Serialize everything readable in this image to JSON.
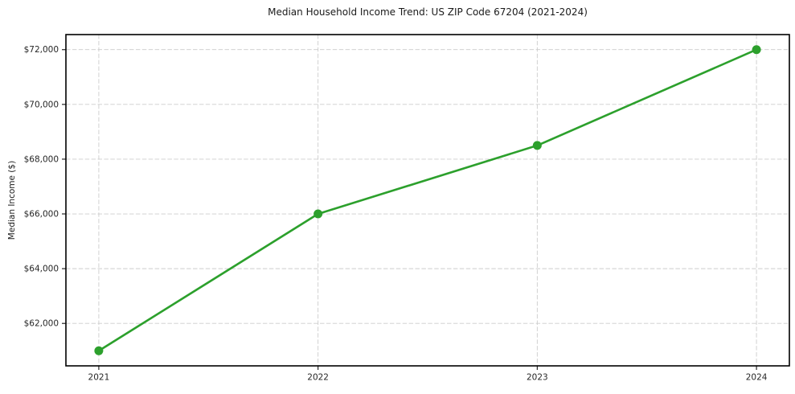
{
  "chart_data": {
    "type": "line",
    "title": "Median Household Income Trend: US ZIP Code 67204 (2021-2024)",
    "xlabel": "",
    "ylabel": "Median Income ($)",
    "x": [
      2021,
      2022,
      2023,
      2024
    ],
    "series": [
      {
        "name": "Median Household Income",
        "values": [
          61000,
          66000,
          68500,
          72000
        ],
        "color": "#2ca02c",
        "marker": "circle",
        "marker_diameter": 11,
        "line_width": 2.6
      }
    ],
    "xticks": [
      2021,
      2022,
      2023,
      2024
    ],
    "xtick_labels": [
      "2021",
      "2022",
      "2023",
      "2024"
    ],
    "yticks": [
      62000,
      64000,
      66000,
      68000,
      70000,
      72000
    ],
    "ytick_labels": [
      "$62,000",
      "$64,000",
      "$66,000",
      "$68,000",
      "$70,000",
      "$72,000"
    ],
    "xlim": [
      2020.85,
      2024.15
    ],
    "ylim": [
      60450,
      72550
    ],
    "grid": true,
    "grid_style": "dashed",
    "grid_color": "#cccccc",
    "spine_color": "#000000",
    "text_color": "#262626",
    "legend": false,
    "legend_position": "none"
  }
}
